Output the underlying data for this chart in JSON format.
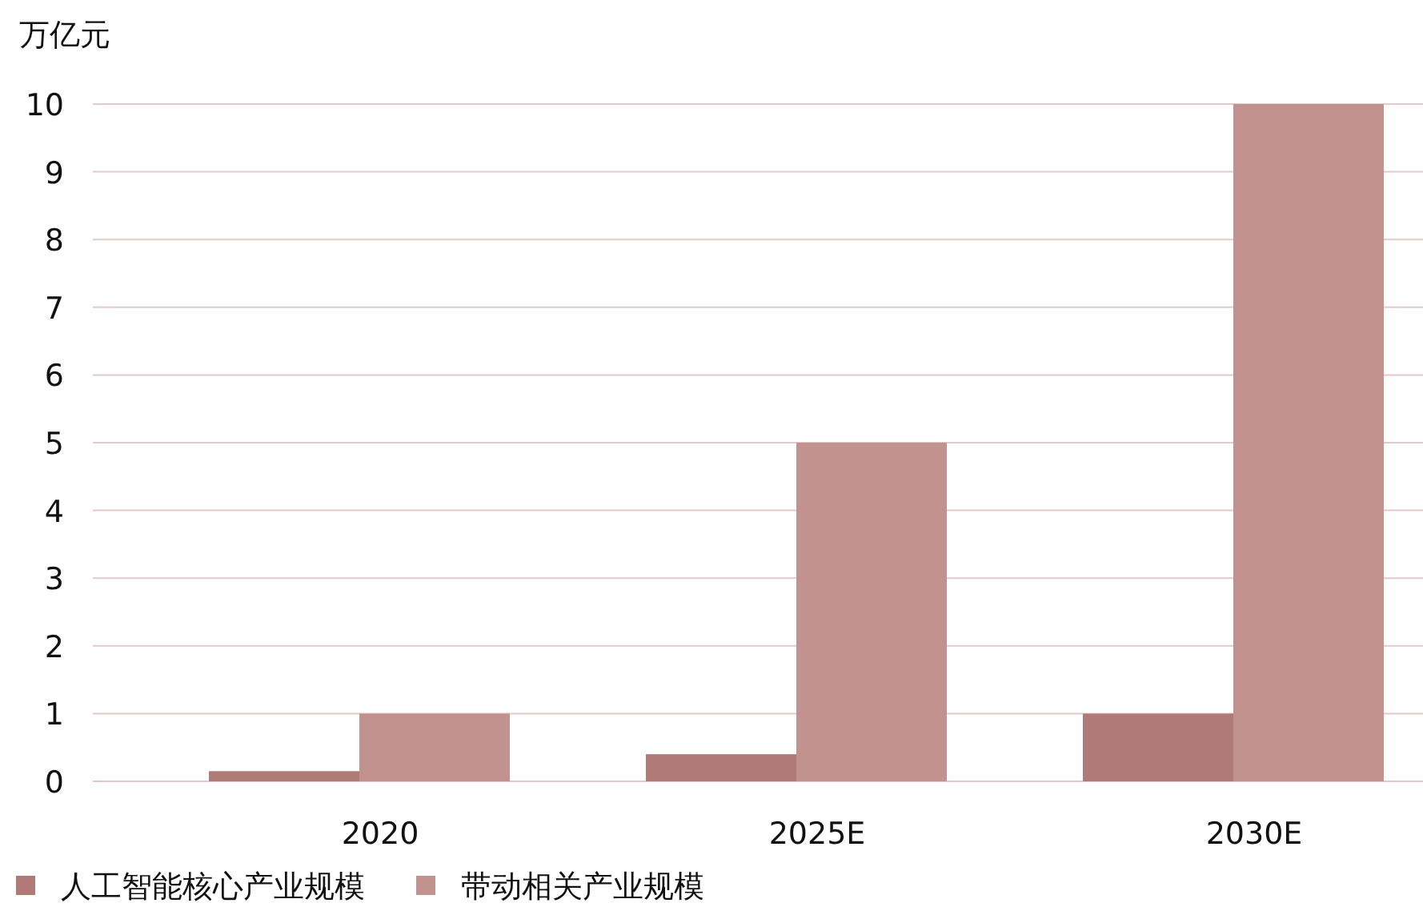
{
  "chart_data": {
    "type": "bar",
    "ylabel": "万亿元",
    "categories": [
      "2020",
      "2025E",
      "2030E"
    ],
    "series": [
      {
        "name": "人工智能核心产业规模",
        "color": "#b07a76",
        "values": [
          0.15,
          0.4,
          1
        ]
      },
      {
        "name": "带动相关产业规模",
        "color": "#c2928e",
        "values": [
          1,
          5,
          10
        ]
      }
    ],
    "ylim": [
      0,
      10
    ],
    "yticks": [
      0,
      1,
      2,
      3,
      4,
      5,
      6,
      7,
      8,
      9,
      10
    ],
    "grid": "y",
    "legend": "bottom left"
  }
}
